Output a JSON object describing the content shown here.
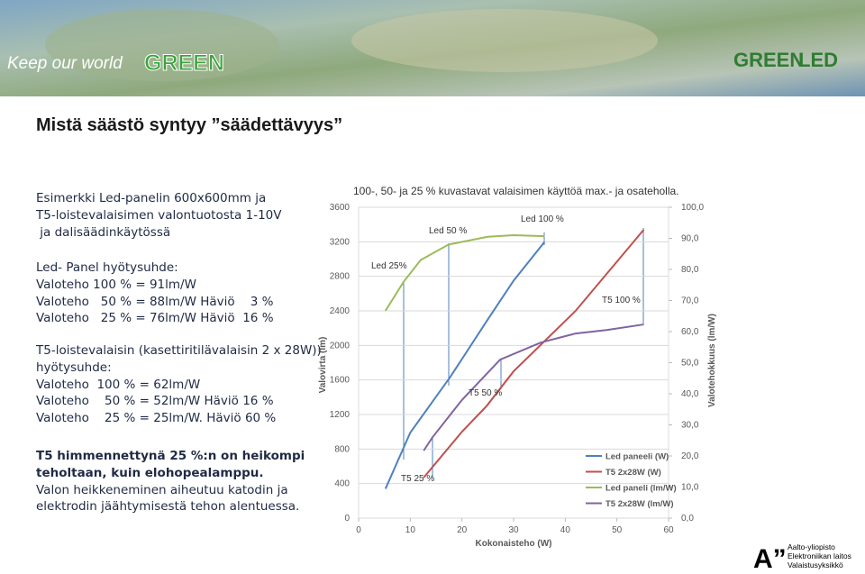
{
  "header": {
    "tagline_prefix": "Keep our world",
    "tagline_highlight": "GREEN",
    "logo_left": "GREEN",
    "logo_right": "LED"
  },
  "title": "Mistä säästö syntyy ”säädettävyys”",
  "body": {
    "intro": [
      "Esimerkki Led-panelin 600x600mm ja",
      "T5-loistevalaisimen valontuotosta 1-10V",
      " ja dalisäädinkäytössä"
    ],
    "led": [
      "Led- Panel hyötysuhde:",
      "Valoteho 100 % = 91lm/W",
      "Valoteho   50 % = 88lm/W Häviö    3 %",
      "Valoteho   25 % = 76lm/W Häviö  16 %"
    ],
    "t5": [
      "T5-loistevalaisin (kasettiritilävalaisin 2 x 28W))",
      "hyötysuhde:",
      "Valoteho  100 % = 62lm/W",
      "Valoteho    50 % = 52lm/W Häviö 16 %",
      "Valoteho    25 % = 25lm/W. Häviö 60 %"
    ],
    "conclusion_bold": [
      "T5 himmennettynä 25 %:n on heikompi",
      "teholtaan, kuin elohopealamppu."
    ],
    "conclusion": [
      "Valon heikkeneminen aiheutuu katodin ja",
      "elektrodin jäähtymisestä tehon alentuessa."
    ]
  },
  "chart_data": {
    "type": "line",
    "title": "100-, 50- ja 25 % kuvastavat valaisimen käyttöä max.- ja osateholla.",
    "x_label": "Kokonaisteho (W)",
    "y_label": "Valovirta (lm)",
    "y2_label": "Valotehokkuus (lm/W)",
    "xlim": [
      0,
      60
    ],
    "xticks": [
      0,
      10,
      20,
      30,
      40,
      50,
      60
    ],
    "ylim": [
      0,
      3600
    ],
    "yticks": [
      0,
      400,
      800,
      1200,
      1600,
      2000,
      2400,
      2800,
      3200,
      3600
    ],
    "y2lim": [
      0,
      100
    ],
    "y2ticks": [
      {
        "value": 0,
        "label": "0,0"
      },
      {
        "value": 10,
        "label": "10,0"
      },
      {
        "value": 20,
        "label": "20,0"
      },
      {
        "value": 30,
        "label": "30,0"
      },
      {
        "value": 40,
        "label": "40,0"
      },
      {
        "value": 50,
        "label": "50,0"
      },
      {
        "value": 60,
        "label": "60,0"
      },
      {
        "value": 70,
        "label": "70,0"
      },
      {
        "value": 80,
        "label": "80,0"
      },
      {
        "value": 90,
        "label": "90,0"
      },
      {
        "value": 100,
        "label": "100,0"
      }
    ],
    "grid": true,
    "legend": "lower right",
    "series": [
      {
        "name": "Led paneeli (W)",
        "color": "#4f81bd",
        "x": [
          5.2,
          10,
          17.8,
          25,
          30,
          36
        ],
        "values": [
          340,
          990,
          1640,
          2300,
          2750,
          3200
        ]
      },
      {
        "name": "T5 2x28W (W)",
        "color": "#c0504d",
        "x": [
          12.6,
          20,
          24.8,
          30,
          42,
          55.2
        ],
        "values": [
          470,
          1000,
          1300,
          1700,
          2400,
          3340
        ]
      },
      {
        "name": "Led paneli (lm/W)",
        "color": "#9bbb59",
        "axis": "y2",
        "x": [
          5.2,
          8.7,
          12,
          17.4,
          25,
          30,
          36
        ],
        "values": [
          66.7,
          76,
          83,
          88,
          90.5,
          91,
          90.7
        ]
      },
      {
        "name": "T5 2x28W (lm/W)",
        "color": "#8064a2",
        "axis": "y2",
        "x": [
          12.6,
          14.3,
          20,
          27.4,
          35.3,
          42,
          48,
          55.2
        ],
        "values": [
          21.7,
          26,
          38,
          51,
          56.5,
          59.4,
          60.5,
          62.3
        ]
      }
    ],
    "annotations": [
      "Led 25%",
      "Led 50 %",
      "Led 100 %",
      "T5 100 %",
      "T5 50 %",
      "T5 25 %"
    ]
  },
  "footer": {
    "logo": "A”",
    "lines": [
      "Aalto-yliopisto",
      "Elektroniikan laitos",
      "Valaistusyksikkö"
    ]
  }
}
